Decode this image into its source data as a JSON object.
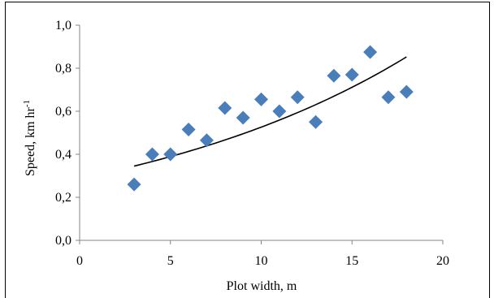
{
  "chart_data": {
    "type": "scatter",
    "title": "",
    "xlabel": "Plot width, m",
    "ylabel_base": "Speed, km hr",
    "ylabel_superscript": "-1",
    "xlim": [
      0,
      20
    ],
    "ylim": [
      0.0,
      1.0
    ],
    "x_ticks": [
      0,
      5,
      10,
      15,
      20
    ],
    "y_ticks": [
      0.0,
      0.2,
      0.4,
      0.6,
      0.8,
      1.0
    ],
    "x_tick_labels": [
      "0",
      "5",
      "10",
      "15",
      "20"
    ],
    "y_tick_labels": [
      "0,0",
      "0,2",
      "0,4",
      "0,6",
      "0,8",
      "1,0"
    ],
    "grid": false,
    "legend": "none",
    "marker": "diamond",
    "marker_color": "#4A7EBB",
    "trendline_color": "#000000",
    "series": [
      {
        "x": [
          3,
          4,
          5,
          6,
          7,
          8,
          9,
          10,
          11,
          12,
          13,
          14,
          15,
          16,
          17,
          18
        ],
        "y": [
          0.26,
          0.4,
          0.4,
          0.515,
          0.465,
          0.615,
          0.57,
          0.655,
          0.6,
          0.665,
          0.55,
          0.765,
          0.77,
          0.875,
          0.665,
          0.69
        ]
      }
    ],
    "trendline": {
      "type": "exponential",
      "x_start": 3,
      "x_end": 18,
      "a": 0.2879,
      "b": 0.0603
    }
  }
}
